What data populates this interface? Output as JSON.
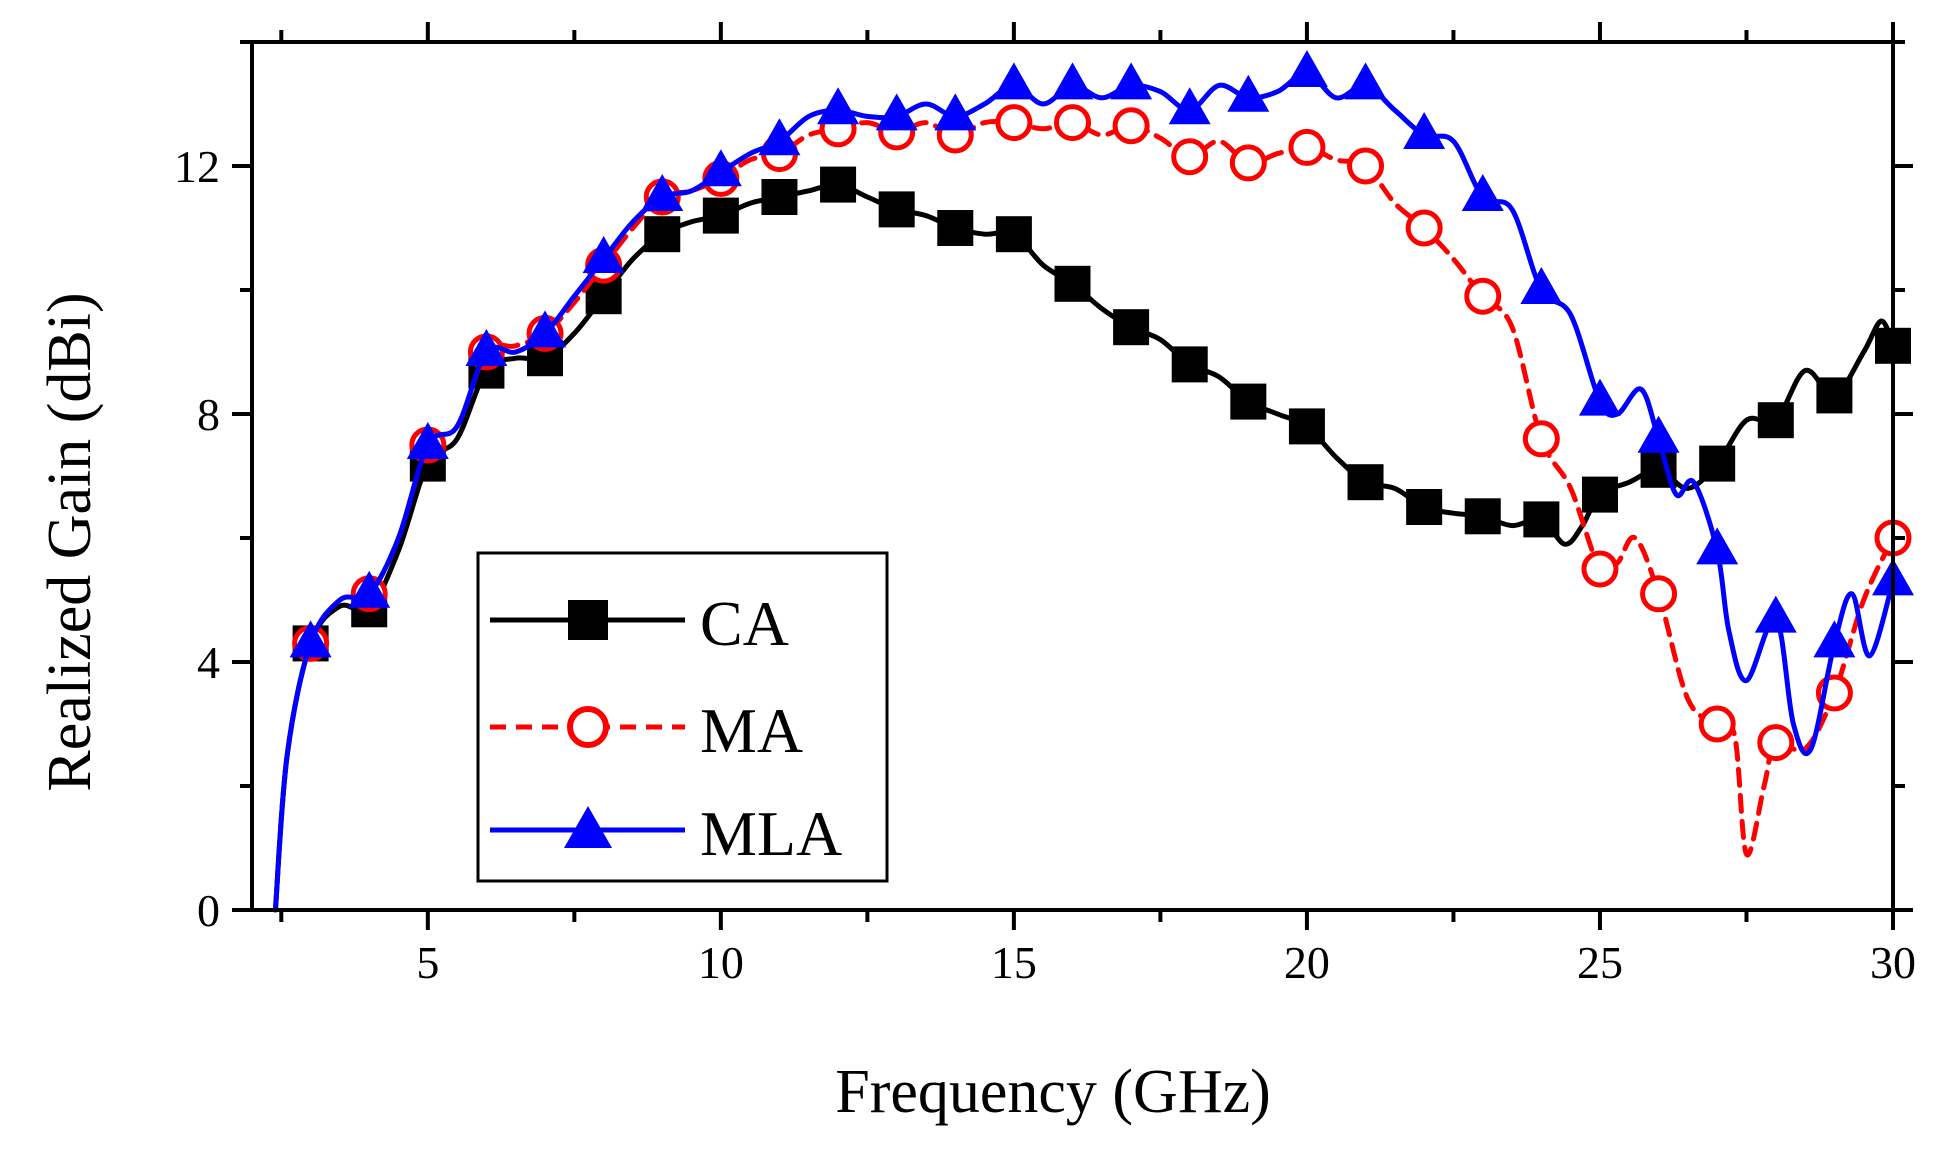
{
  "chart_data": {
    "type": "line",
    "title": "",
    "xlabel": "Frequency (GHz)",
    "ylabel": "Realized Gain (dBi)",
    "xlim": [
      2,
      30
    ],
    "ylim": [
      0,
      14
    ],
    "xticks": [
      5,
      10,
      15,
      20,
      25,
      30
    ],
    "yticks": [
      0,
      4,
      8,
      12
    ],
    "grid": false,
    "legend_position": "bottom-left",
    "series": [
      {
        "name": "CA",
        "color": "#000000",
        "dash": "solid",
        "marker": "square",
        "x": [
          2.4,
          2.6,
          3,
          3.5,
          4,
          4.5,
          5,
          5.5,
          6,
          6.5,
          7,
          7.5,
          8,
          8.5,
          9,
          9.5,
          10,
          10.5,
          11,
          11.5,
          12,
          12.5,
          13,
          13.5,
          14,
          14.5,
          15,
          15.5,
          16,
          16.5,
          17,
          17.5,
          18,
          18.5,
          19,
          19.5,
          20,
          20.5,
          21,
          21.5,
          22,
          22.5,
          23,
          23.5,
          24,
          24.4,
          24.7,
          25,
          25.5,
          26,
          26.5,
          27,
          27.5,
          28,
          28.5,
          29,
          29.5,
          29.8,
          30
        ],
        "y": [
          0,
          2.5,
          4.3,
          4.9,
          4.85,
          5.8,
          7.2,
          7.6,
          8.7,
          8.9,
          8.9,
          9.3,
          9.9,
          10.5,
          10.9,
          11.1,
          11.2,
          11.4,
          11.5,
          11.6,
          11.7,
          11.5,
          11.3,
          11.2,
          11.0,
          10.9,
          10.9,
          10.4,
          10.1,
          9.7,
          9.4,
          9.2,
          8.8,
          8.6,
          8.2,
          8.0,
          7.8,
          7.3,
          6.9,
          6.8,
          6.5,
          6.4,
          6.35,
          6.2,
          6.3,
          5.9,
          6.2,
          6.7,
          6.9,
          7.1,
          6.8,
          7.2,
          7.9,
          7.9,
          8.7,
          8.3,
          9.0,
          9.5,
          9.1
        ],
        "markers_x": [
          3,
          4,
          5,
          6,
          7,
          8,
          9,
          10,
          11,
          12,
          13,
          14,
          15,
          16,
          17,
          18,
          19,
          20,
          21,
          22,
          23,
          24,
          25,
          26,
          27,
          28,
          29,
          30
        ],
        "markers_y": [
          4.3,
          4.85,
          7.2,
          8.7,
          8.9,
          9.9,
          10.9,
          11.2,
          11.5,
          11.7,
          11.3,
          11.0,
          10.9,
          10.1,
          9.4,
          8.8,
          8.2,
          7.8,
          6.9,
          6.5,
          6.35,
          6.3,
          6.7,
          7.1,
          7.2,
          7.9,
          8.3,
          9.1
        ]
      },
      {
        "name": "MA",
        "color": "#ff0000",
        "dash": "dashed",
        "marker": "circle",
        "x": [
          2.4,
          2.6,
          3,
          3.5,
          4,
          4.5,
          5,
          5.5,
          6,
          6.5,
          7,
          7.5,
          8,
          8.5,
          9,
          9.5,
          10,
          10.5,
          11,
          11.5,
          12,
          12.5,
          13,
          13.5,
          14,
          14.5,
          15,
          15.5,
          16,
          16.5,
          17,
          17.5,
          18,
          18.5,
          19,
          19.5,
          20,
          20.5,
          21,
          21.5,
          22,
          22.5,
          23,
          23.5,
          24,
          24.5,
          25,
          25.3,
          25.6,
          26,
          26.5,
          27,
          27.3,
          27.5,
          27.8,
          28,
          28.5,
          29,
          29.5,
          30
        ],
        "y": [
          0,
          2.5,
          4.3,
          5.0,
          5.1,
          6.0,
          7.5,
          7.8,
          9.0,
          9.1,
          9.3,
          9.8,
          10.4,
          11.0,
          11.5,
          11.6,
          11.8,
          12.1,
          12.2,
          12.5,
          12.6,
          12.7,
          12.55,
          12.7,
          12.5,
          12.7,
          12.7,
          12.6,
          12.7,
          12.5,
          12.65,
          12.45,
          12.15,
          12.4,
          12.05,
          12.2,
          12.3,
          12.1,
          12.0,
          11.4,
          11.0,
          10.5,
          9.9,
          9.4,
          7.6,
          6.8,
          5.5,
          5.6,
          6.0,
          5.1,
          3.4,
          3.0,
          2.8,
          0.9,
          2.0,
          2.7,
          2.6,
          3.5,
          5.0,
          6.0
        ],
        "markers_x": [
          3,
          4,
          5,
          6,
          7,
          8,
          9,
          10,
          11,
          12,
          13,
          14,
          15,
          16,
          17,
          18,
          19,
          20,
          21,
          22,
          23,
          24,
          25,
          26,
          27,
          28,
          29,
          30
        ],
        "markers_y": [
          4.3,
          5.1,
          7.5,
          9.0,
          9.3,
          10.4,
          11.5,
          11.8,
          12.2,
          12.6,
          12.55,
          12.5,
          12.7,
          12.7,
          12.65,
          12.15,
          12.05,
          12.3,
          12.0,
          11.0,
          9.9,
          7.6,
          5.5,
          5.1,
          3.0,
          2.7,
          3.5,
          6.0
        ]
      },
      {
        "name": "MLA",
        "color": "#0000ff",
        "dash": "solid",
        "marker": "triangle",
        "x": [
          2.4,
          2.6,
          3,
          3.5,
          4,
          4.5,
          5,
          5.5,
          6,
          6.5,
          7,
          7.5,
          8,
          8.5,
          9,
          9.5,
          10,
          10.5,
          11,
          11.5,
          12,
          12.5,
          13,
          13.5,
          14,
          14.5,
          15,
          15.5,
          16,
          16.5,
          17,
          17.5,
          18,
          18.5,
          19,
          19.5,
          20,
          20.5,
          21,
          21.5,
          22,
          22.5,
          23,
          23.5,
          24,
          24.5,
          25,
          25.3,
          25.7,
          26,
          26.3,
          26.6,
          27,
          27.2,
          27.5,
          28,
          28.3,
          28.6,
          29,
          29.3,
          29.6,
          30
        ],
        "y": [
          0,
          2.5,
          4.3,
          5.0,
          5.1,
          6.0,
          7.5,
          7.8,
          9.0,
          9.0,
          9.3,
          9.9,
          10.5,
          11.1,
          11.5,
          11.6,
          11.9,
          12.2,
          12.4,
          12.8,
          12.9,
          12.8,
          12.8,
          13.0,
          12.8,
          13.0,
          13.3,
          13.0,
          13.3,
          13.1,
          13.3,
          13.2,
          12.9,
          13.3,
          13.1,
          13.2,
          13.5,
          13.1,
          13.3,
          12.9,
          12.5,
          12.4,
          11.5,
          11.3,
          10.0,
          9.6,
          8.2,
          8.0,
          8.4,
          7.6,
          6.7,
          6.9,
          5.8,
          4.5,
          3.7,
          4.7,
          3.0,
          2.6,
          4.3,
          5.1,
          4.1,
          5.3
        ],
        "markers_x": [
          3,
          4,
          5,
          6,
          7,
          8,
          9,
          10,
          11,
          12,
          13,
          14,
          15,
          16,
          17,
          18,
          19,
          20,
          21,
          22,
          23,
          24,
          25,
          26,
          27,
          28,
          29,
          30
        ],
        "markers_y": [
          4.3,
          5.1,
          7.5,
          9.0,
          9.3,
          10.5,
          11.5,
          11.9,
          12.4,
          12.9,
          12.8,
          12.8,
          13.3,
          13.3,
          13.3,
          12.9,
          13.1,
          13.5,
          13.3,
          12.5,
          11.5,
          10.0,
          8.2,
          7.6,
          5.8,
          4.7,
          4.3,
          5.3
        ]
      }
    ]
  }
}
